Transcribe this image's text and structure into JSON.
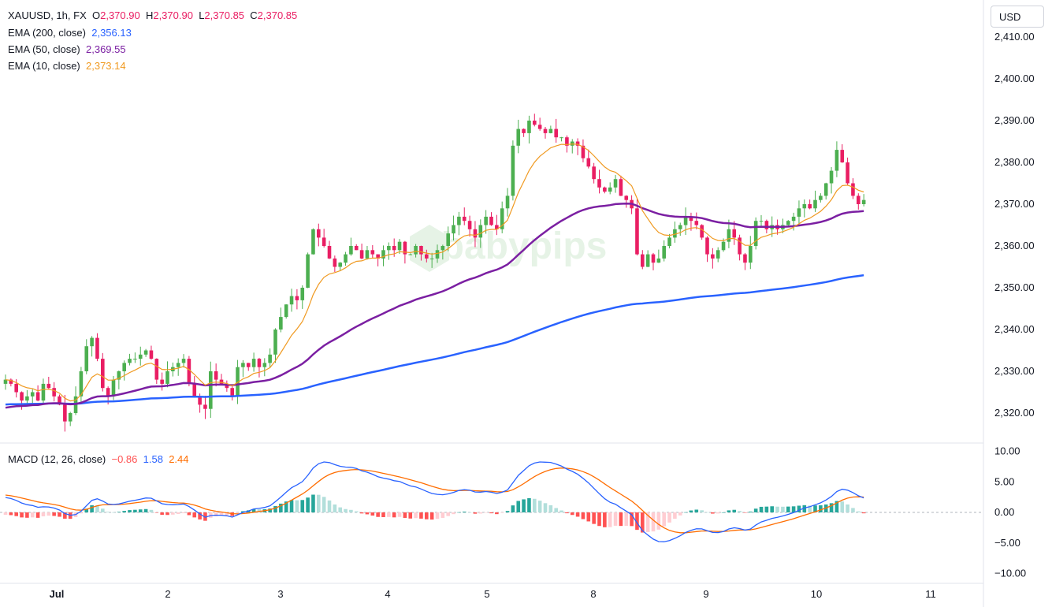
{
  "header": {
    "symbol": "XAUUSD",
    "interval": "1h",
    "exchange": "FX",
    "o_label": "O",
    "o_value": "2,370.90",
    "h_label": "H",
    "h_value": "2,370.90",
    "l_label": "L",
    "l_value": "2,370.85",
    "c_label": "C",
    "c_value": "2,370.85"
  },
  "indicators": [
    {
      "label": "EMA (200, close)",
      "value": "2,356.13",
      "color": "#2962ff"
    },
    {
      "label": "EMA (50, close)",
      "value": "2,369.55",
      "color": "#7b1fa2"
    },
    {
      "label": "EMA (10, close)",
      "value": "2,373.14",
      "color": "#f09a21"
    }
  ],
  "macd_legend": {
    "label": "MACD (12, 26, close)",
    "hist": "−0.86",
    "macd": "1.58",
    "signal": "2.44"
  },
  "currency_button": "USD",
  "watermark": "babypips",
  "colors": {
    "up": "#4caf50",
    "down": "#e91e63",
    "ema200": "#2962ff",
    "ema50": "#7b1fa2",
    "ema10": "#f09a21",
    "macd": "#2962ff",
    "signal": "#ff6d00",
    "hist_up_strong": "#26a69a",
    "hist_up_weak": "#b2dfdb",
    "hist_down_strong": "#ff5252",
    "hist_down_weak": "#ffcdd2"
  },
  "chart_data": [
    {
      "type": "candlestick",
      "title": "XAUUSD, 1h, FX",
      "x_tick_labels": [
        "Jul",
        "2",
        "3",
        "4",
        "5",
        "8",
        "9",
        "10",
        "11"
      ],
      "y_ticks": [
        2320,
        2330,
        2340,
        2350,
        2360,
        2370,
        2380,
        2390,
        2400,
        2410
      ],
      "y_tick_labels": [
        "2,320.00",
        "2,330.00",
        "2,340.00",
        "2,350.00",
        "2,360.00",
        "2,370.00",
        "2,380.00",
        "2,390.00",
        "2,400.00",
        "2,410.00"
      ],
      "ylim": [
        2314,
        2418
      ],
      "y_axis_position": "right",
      "close": [
        2328,
        2327,
        2325,
        2323,
        2324,
        2325,
        2323,
        2327,
        2326,
        2324,
        2322,
        2318,
        2320,
        2324,
        2330,
        2336,
        2338,
        2333,
        2326,
        2324,
        2328,
        2330,
        2332,
        2333,
        2333,
        2334,
        2335,
        2333,
        2328,
        2327,
        2330,
        2331,
        2332,
        2333,
        2327,
        2324,
        2322,
        2321,
        2330,
        2328,
        2327,
        2326,
        2324,
        2331,
        2332,
        2331,
        2333,
        2331,
        2332,
        2334,
        2340,
        2343,
        2346,
        2348,
        2347,
        2350,
        2358,
        2364,
        2362,
        2360,
        2357,
        2355,
        2356,
        2358,
        2360,
        2359,
        2357,
        2359,
        2358,
        2357,
        2359,
        2360,
        2359,
        2361,
        2358,
        2358,
        2360,
        2358,
        2357,
        2357,
        2359,
        2360,
        2363,
        2365,
        2367,
        2366,
        2364,
        2362,
        2365,
        2367,
        2365,
        2364,
        2369,
        2372,
        2384,
        2388,
        2387,
        2390,
        2389,
        2388,
        2387,
        2388,
        2386,
        2386,
        2384,
        2385,
        2384,
        2381,
        2379,
        2376,
        2374,
        2373,
        2374,
        2376,
        2372,
        2371,
        2369,
        2358,
        2355,
        2358,
        2356,
        2357,
        2360,
        2362,
        2364,
        2365,
        2367,
        2366,
        2365,
        2362,
        2358,
        2357,
        2359,
        2361,
        2364,
        2362,
        2358,
        2356,
        2360,
        2366,
        2366,
        2364,
        2365,
        2364,
        2365,
        2366,
        2367,
        2369,
        2370,
        2369,
        2371,
        2372,
        2375,
        2378,
        2383,
        2380,
        2375,
        2372,
        2370,
        2371
      ],
      "indicators": [
        "EMA (200, close)",
        "EMA (50, close)",
        "EMA (10, close)"
      ]
    },
    {
      "type": "line",
      "title": "MACD (12, 26, close)",
      "y_ticks": [
        -10,
        -5,
        0,
        5,
        10
      ],
      "y_tick_labels": [
        "−10.00",
        "−5.00",
        "0.00",
        "5.00",
        "10.00"
      ],
      "ylim": [
        -11,
        11
      ],
      "series": [
        {
          "name": "MACD",
          "color": "#2962ff"
        },
        {
          "name": "Signal",
          "color": "#ff6d00"
        },
        {
          "name": "Histogram",
          "type": "bar"
        }
      ]
    }
  ]
}
